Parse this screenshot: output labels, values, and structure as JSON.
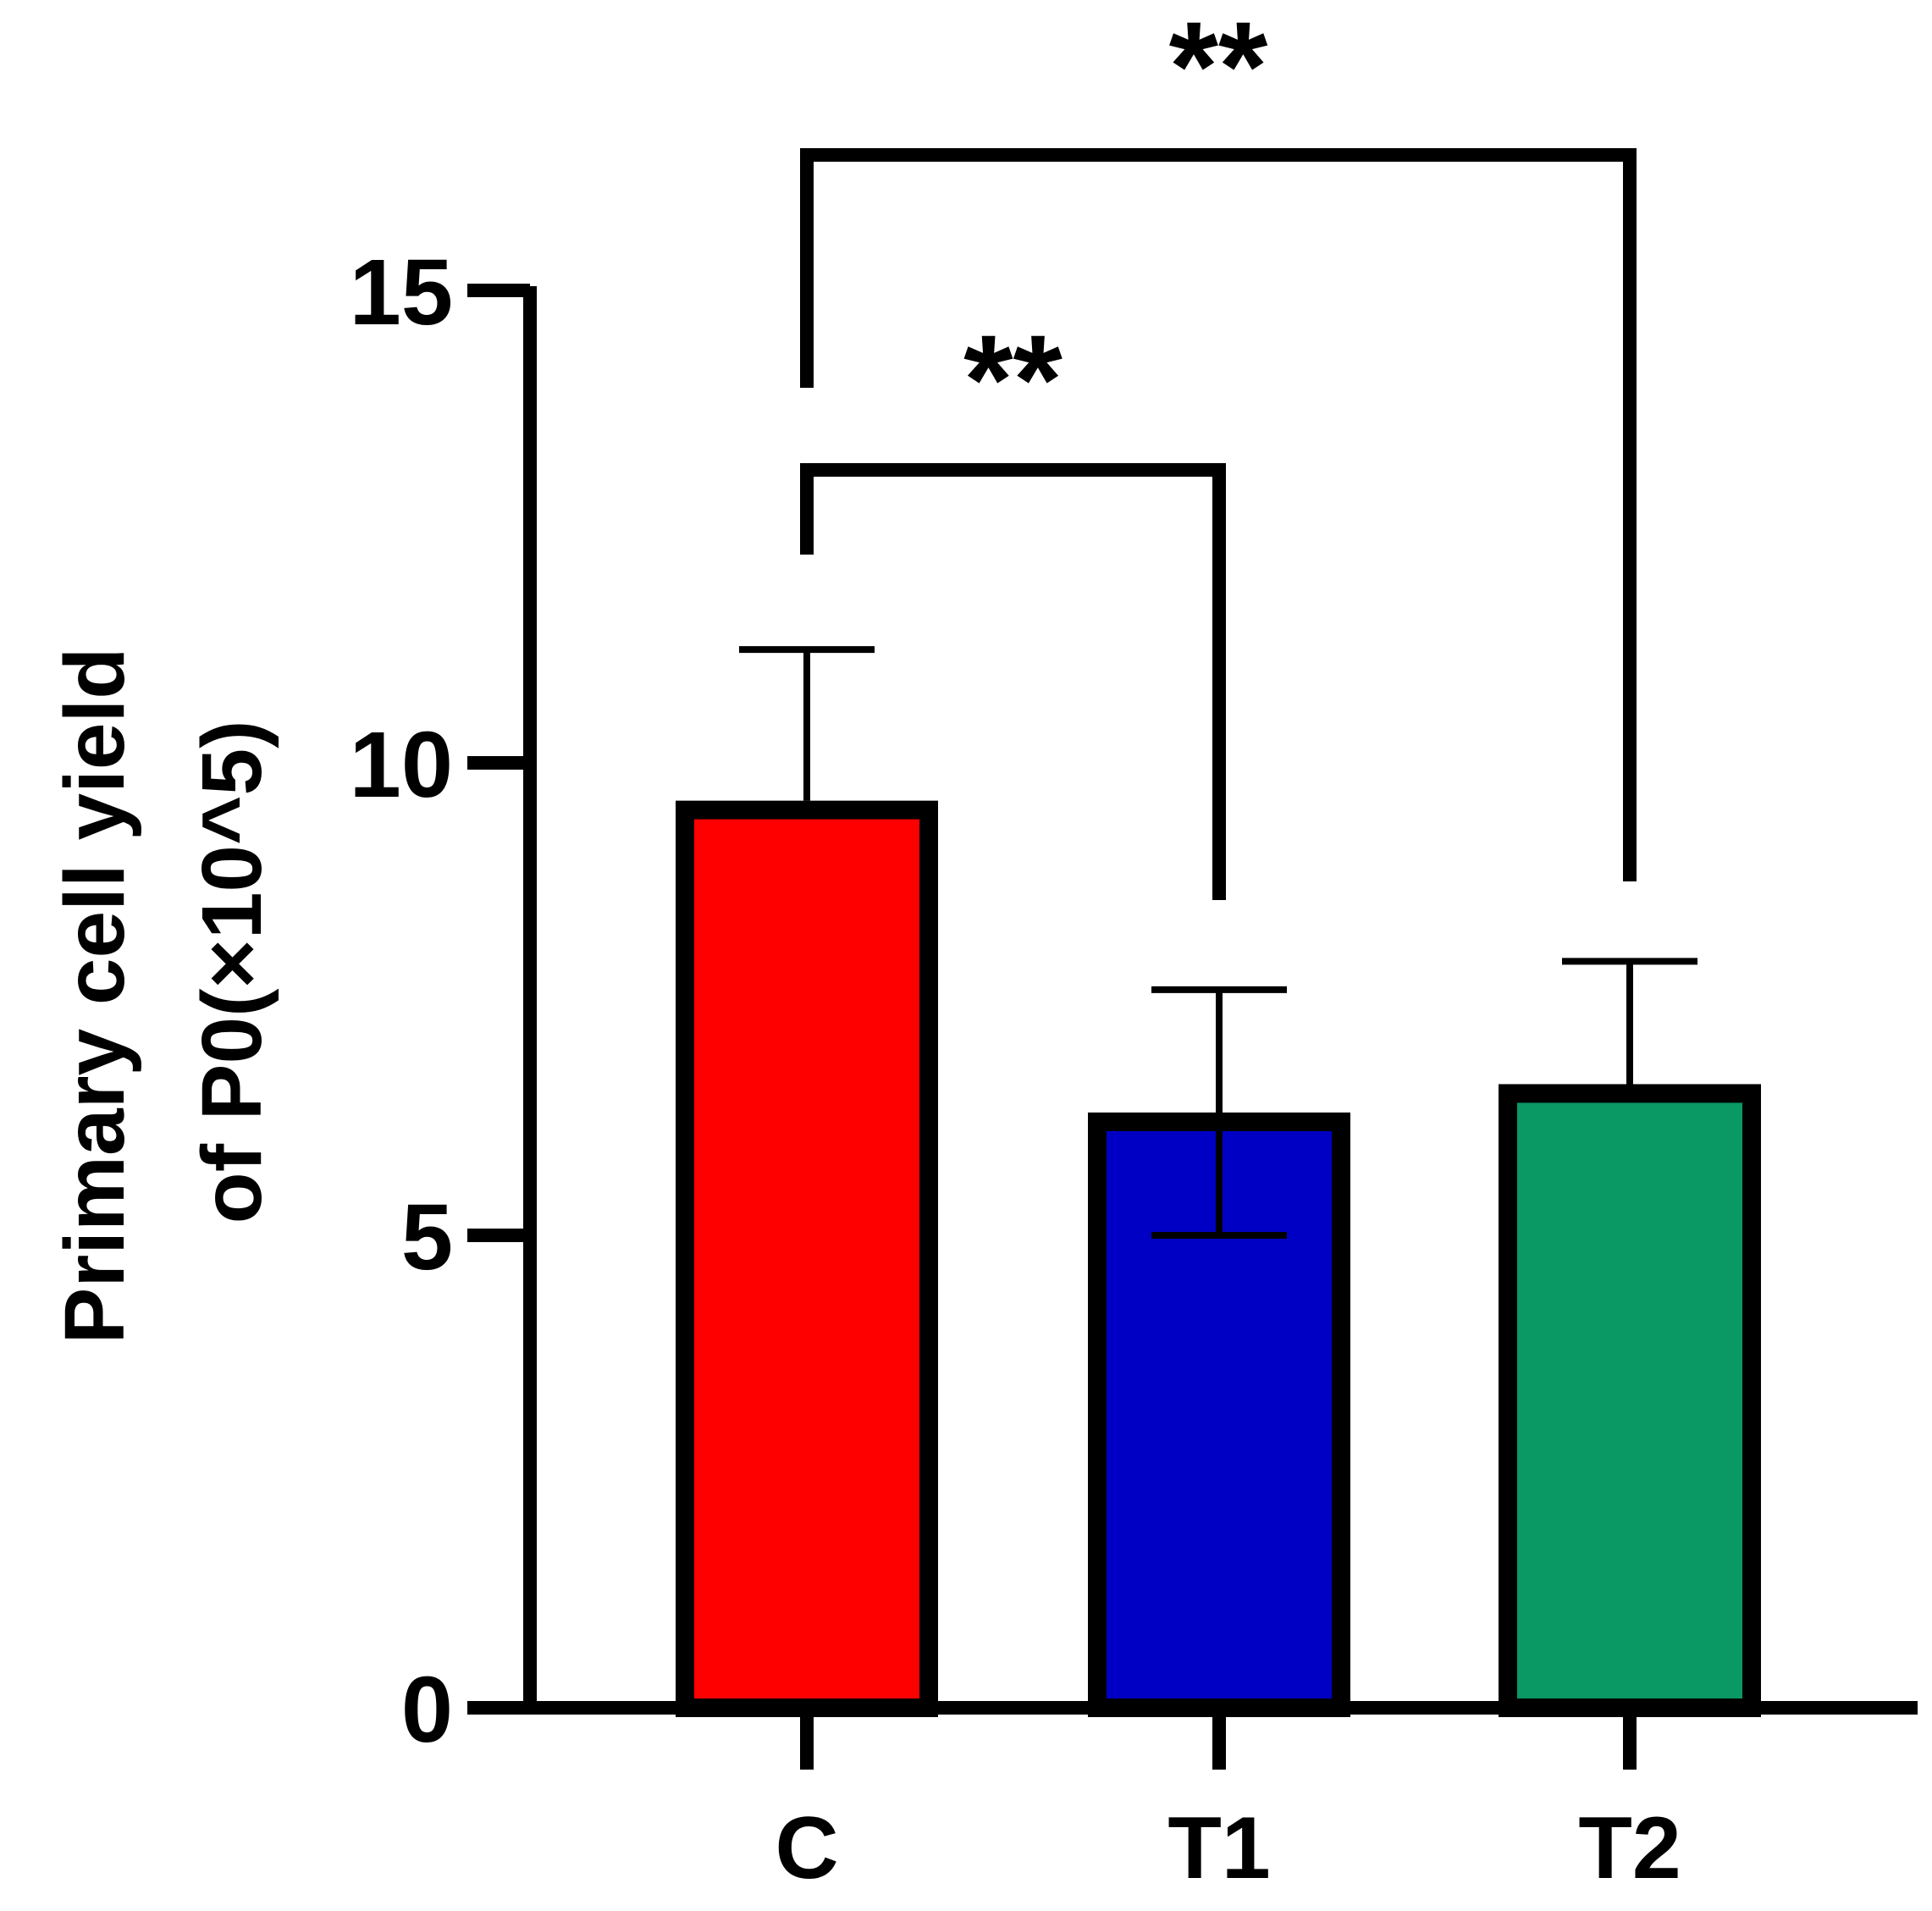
{
  "chart_data": {
    "type": "bar",
    "ylabel": [
      "Primary cell yield",
      "of P0(×10^5)"
    ],
    "ylim": [
      0,
      15
    ],
    "yticks": [
      0,
      5,
      10,
      15
    ],
    "categories": [
      "C",
      "T1",
      "T2"
    ],
    "values": [
      9.6,
      6.3,
      6.6
    ],
    "errors": [
      1.6,
      1.3,
      1.3
    ],
    "error_bar_style": {
      "C": "upper",
      "T1": "both",
      "T2": "upper"
    },
    "colors": [
      "#ff0000",
      "#0000c4",
      "#0a9865"
    ],
    "significance": [
      {
        "from": "C",
        "to": "T1",
        "label": "**"
      },
      {
        "from": "C",
        "to": "T2",
        "label": "**"
      }
    ],
    "grid": false,
    "legend": "none"
  }
}
